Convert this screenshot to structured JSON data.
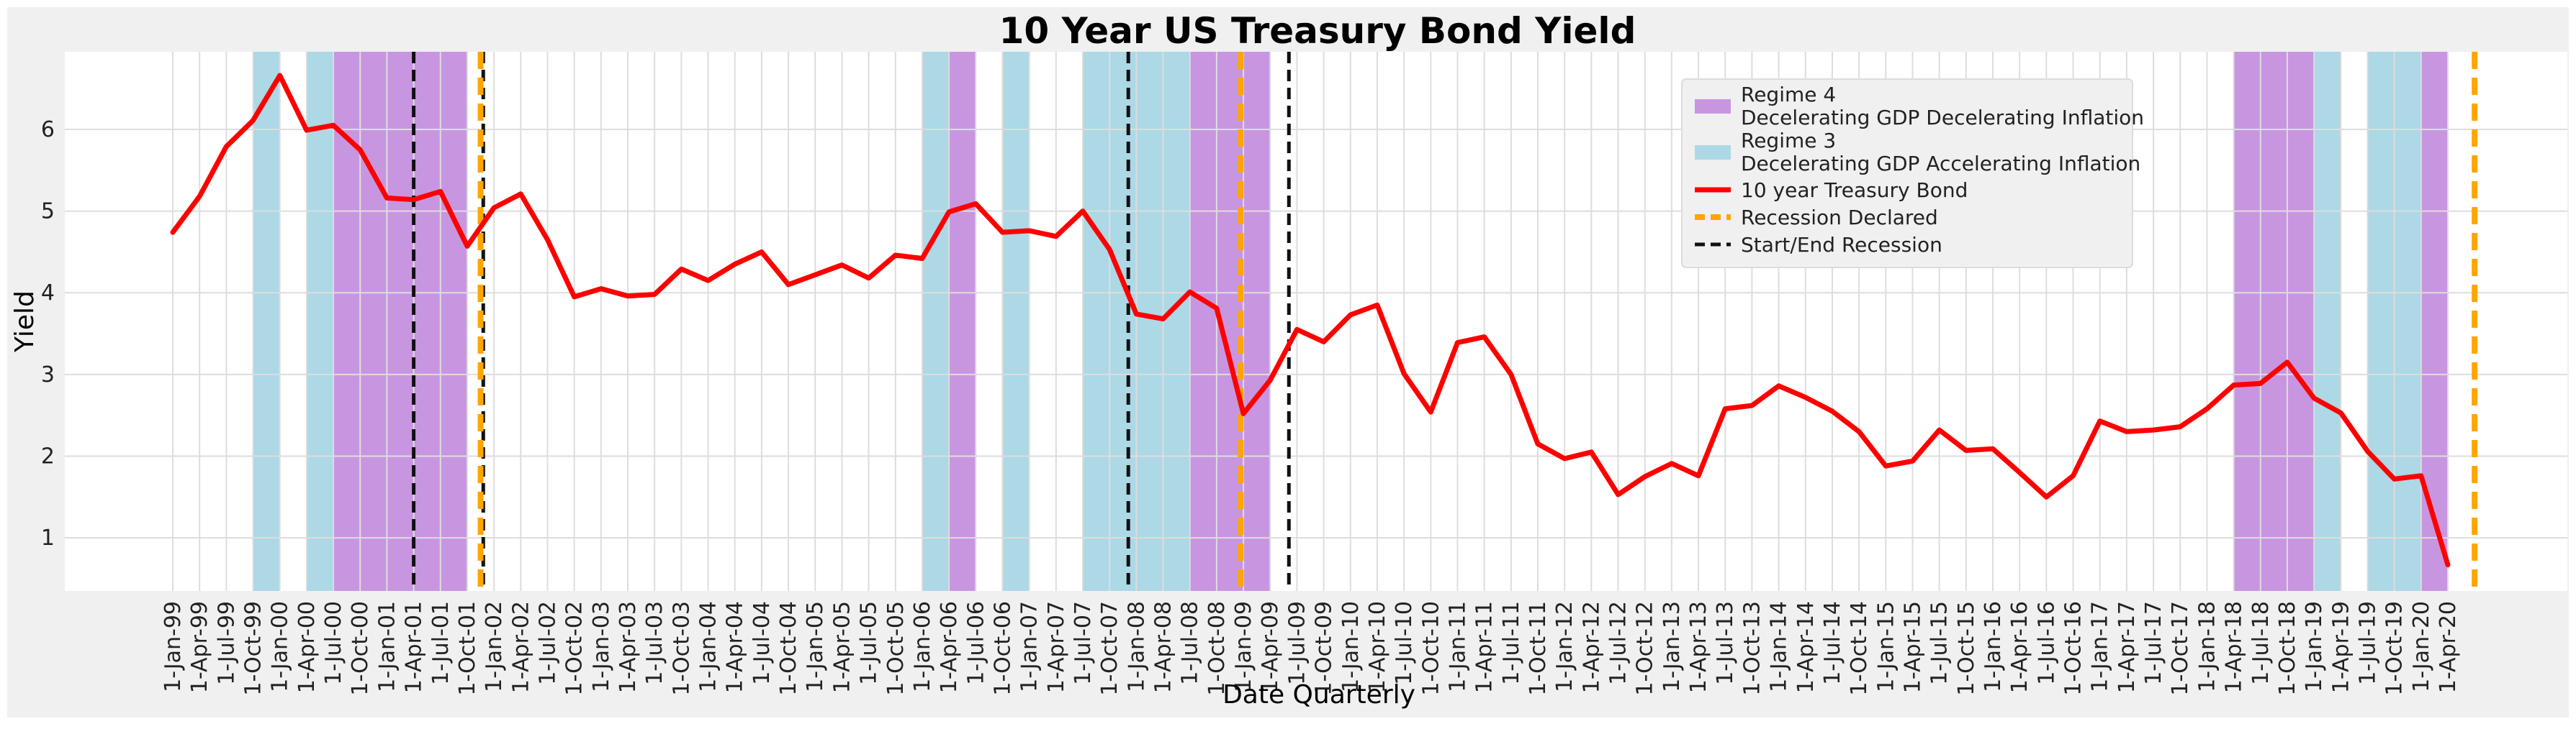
{
  "chart_data": {
    "type": "line",
    "title": "10 Year US Treasury Bond Yield",
    "xlabel": "Date Quarterly",
    "ylabel": "Yield",
    "ylim": [
      0.35,
      6.95
    ],
    "yticks": [
      1,
      2,
      3,
      4,
      5,
      6
    ],
    "grid": true,
    "legend_position": "top-right",
    "colors": {
      "regime4": "#c896e0",
      "regime3": "#add8e6",
      "bond": "#ff0000",
      "recession_declared": "#ffa500",
      "start_end_recession": "#111111"
    },
    "categories": [
      "1-Jan-99",
      "1-Apr-99",
      "1-Jul-99",
      "1-Oct-99",
      "1-Jan-00",
      "1-Apr-00",
      "1-Jul-00",
      "1-Oct-00",
      "1-Jan-01",
      "1-Apr-01",
      "1-Jul-01",
      "1-Oct-01",
      "1-Jan-02",
      "1-Apr-02",
      "1-Jul-02",
      "1-Oct-02",
      "1-Jan-03",
      "1-Apr-03",
      "1-Jul-03",
      "1-Oct-03",
      "1-Jan-04",
      "1-Apr-04",
      "1-Jul-04",
      "1-Oct-04",
      "1-Jan-05",
      "1-Apr-05",
      "1-Jul-05",
      "1-Oct-05",
      "1-Jan-06",
      "1-Apr-06",
      "1-Jul-06",
      "1-Oct-06",
      "1-Jan-07",
      "1-Apr-07",
      "1-Jul-07",
      "1-Oct-07",
      "1-Jan-08",
      "1-Apr-08",
      "1-Jul-08",
      "1-Oct-08",
      "1-Jan-09",
      "1-Apr-09",
      "1-Jul-09",
      "1-Oct-09",
      "1-Jan-10",
      "1-Apr-10",
      "1-Jul-10",
      "1-Oct-10",
      "1-Jan-11",
      "1-Apr-11",
      "1-Jul-11",
      "1-Oct-11",
      "1-Jan-12",
      "1-Apr-12",
      "1-Jul-12",
      "1-Oct-12",
      "1-Jan-13",
      "1-Apr-13",
      "1-Jul-13",
      "1-Oct-13",
      "1-Jan-14",
      "1-Apr-14",
      "1-Jul-14",
      "1-Oct-14",
      "1-Jan-15",
      "1-Apr-15",
      "1-Jul-15",
      "1-Oct-15",
      "1-Jan-16",
      "1-Apr-16",
      "1-Jul-16",
      "1-Oct-16",
      "1-Jan-17",
      "1-Apr-17",
      "1-Jul-17",
      "1-Oct-17",
      "1-Jan-18",
      "1-Apr-18",
      "1-Jul-18",
      "1-Oct-18",
      "1-Jan-19",
      "1-Apr-19",
      "1-Jul-19",
      "1-Oct-19",
      "1-Jan-20",
      "1-Apr-20"
    ],
    "series": [
      {
        "name": "10 year Treasury Bond",
        "values": [
          4.74,
          5.18,
          5.79,
          6.11,
          6.66,
          5.99,
          6.05,
          5.75,
          5.16,
          5.14,
          5.24,
          4.57,
          5.04,
          5.21,
          4.65,
          3.95,
          4.05,
          3.96,
          3.98,
          4.29,
          4.15,
          4.35,
          4.5,
          4.1,
          4.22,
          4.34,
          4.18,
          4.46,
          4.42,
          4.99,
          5.09,
          4.74,
          4.76,
          4.69,
          5.0,
          4.53,
          3.74,
          3.68,
          4.01,
          3.81,
          2.52,
          2.93,
          3.55,
          3.4,
          3.73,
          3.85,
          3.01,
          2.54,
          3.39,
          3.46,
          3.0,
          2.15,
          1.97,
          2.05,
          1.53,
          1.75,
          1.91,
          1.76,
          2.58,
          2.62,
          2.86,
          2.72,
          2.55,
          2.3,
          1.88,
          1.94,
          2.32,
          2.07,
          2.09,
          1.8,
          1.5,
          1.76,
          2.43,
          2.3,
          2.32,
          2.36,
          2.58,
          2.87,
          2.89,
          3.15,
          2.71,
          2.53,
          2.06,
          1.72,
          1.76,
          0.67
        ]
      }
    ],
    "regime_bands": [
      {
        "regime": "Regime 3",
        "start": 3,
        "end": 4
      },
      {
        "regime": "Regime 3",
        "start": 5,
        "end": 6
      },
      {
        "regime": "Regime 4",
        "start": 6,
        "end": 11
      },
      {
        "regime": "Regime 3",
        "start": 28,
        "end": 29
      },
      {
        "regime": "Regime 4",
        "start": 29,
        "end": 30
      },
      {
        "regime": "Regime 3",
        "start": 31,
        "end": 32
      },
      {
        "regime": "Regime 3",
        "start": 34,
        "end": 38
      },
      {
        "regime": "Regime 4",
        "start": 38,
        "end": 41
      },
      {
        "regime": "Regime 4",
        "start": 77,
        "end": 80
      },
      {
        "regime": "Regime 3",
        "start": 80,
        "end": 81
      },
      {
        "regime": "Regime 3",
        "start": 82,
        "end": 84
      },
      {
        "regime": "Regime 4",
        "start": 84,
        "end": 85
      }
    ],
    "recession_declared": [
      11.5,
      39.9,
      86.0
    ],
    "start_end_recession": [
      9.0,
      11.6,
      35.7,
      41.7
    ],
    "legend": [
      {
        "label": "Regime 4",
        "sublabel": "Decelerating GDP Decelerating Inflation",
        "kind": "patch",
        "color": "#c896e0"
      },
      {
        "label": "Regime 3",
        "sublabel": "Decelerating GDP Accelerating Inflation",
        "kind": "patch",
        "color": "#add8e6"
      },
      {
        "label": "10 year Treasury Bond",
        "sublabel": "",
        "kind": "line",
        "color": "#ff0000"
      },
      {
        "label": "Recession Declared",
        "sublabel": "",
        "kind": "dashed",
        "color": "#ffa500"
      },
      {
        "label": "Start/End Recession",
        "sublabel": "",
        "kind": "dashed",
        "color": "#111111"
      }
    ]
  }
}
